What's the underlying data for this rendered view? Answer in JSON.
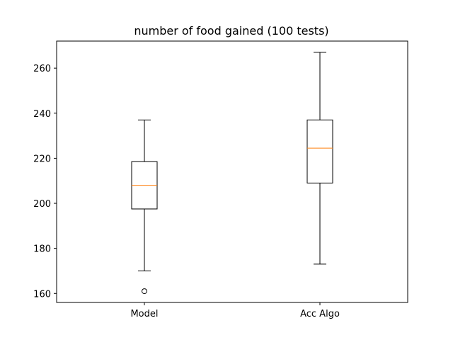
{
  "chart_data": {
    "type": "box",
    "title": "number of food gained (100 tests)",
    "xlabel": "",
    "ylabel": "",
    "categories": [
      "Model",
      "Acc Algo"
    ],
    "ylim": [
      156,
      272
    ],
    "yticks": [
      160,
      180,
      200,
      220,
      240,
      260
    ],
    "grid": false,
    "boxes": [
      {
        "label": "Model",
        "whisker_low": 170,
        "q1": 197.5,
        "median": 208,
        "q3": 218.5,
        "whisker_high": 237,
        "outliers": [
          161
        ]
      },
      {
        "label": "Acc Algo",
        "whisker_low": 173,
        "q1": 209,
        "median": 224.5,
        "q3": 237,
        "whisker_high": 267,
        "outliers": []
      }
    ],
    "colors": {
      "box": "#000000",
      "median": "#ff7f0e",
      "outlier": "#000000"
    }
  }
}
